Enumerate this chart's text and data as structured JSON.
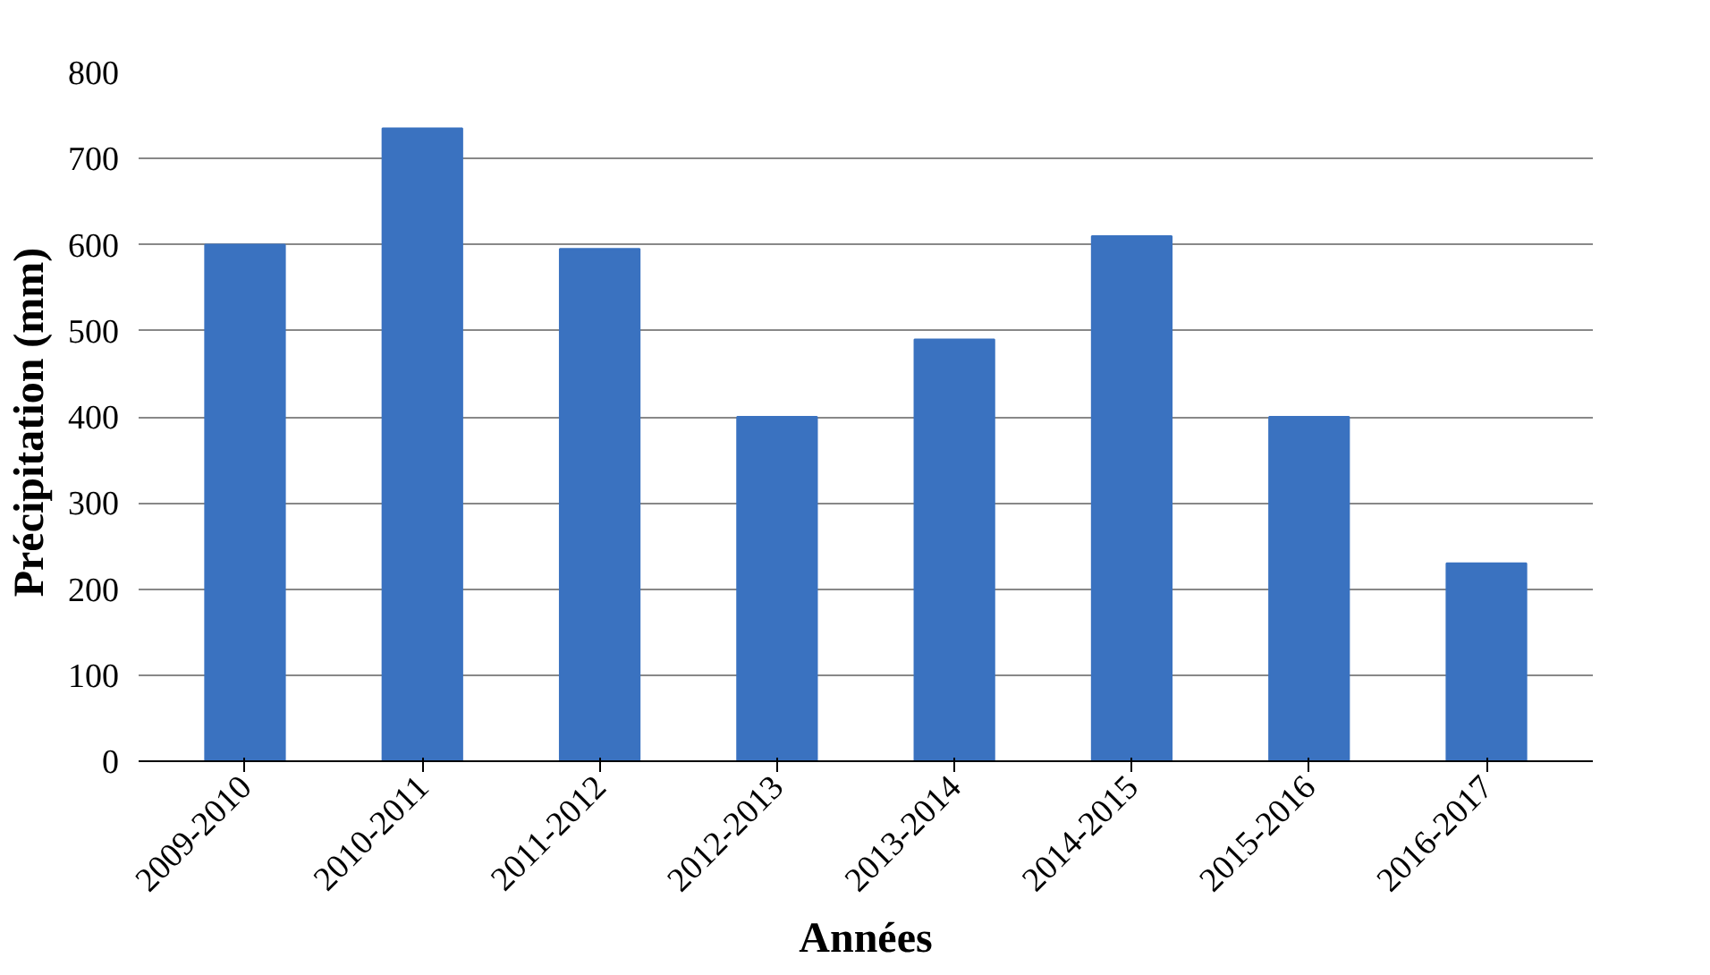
{
  "chart_data": {
    "type": "bar",
    "xlabel": "Années",
    "ylabel": "Précipitation  (mm)",
    "categories": [
      "2009-2010",
      "2010-2011",
      "2011-2012",
      "2012-2013",
      "2013-2014",
      "2014-2015",
      "2015-2016",
      "2016-2017"
    ],
    "values": [
      600,
      735,
      595,
      400,
      490,
      610,
      400,
      230
    ],
    "color": "#3a72c0",
    "ylim": [
      0,
      800
    ],
    "yticks": [
      0,
      100,
      200,
      300,
      400,
      500,
      600,
      700,
      800
    ],
    "grid": "y"
  }
}
